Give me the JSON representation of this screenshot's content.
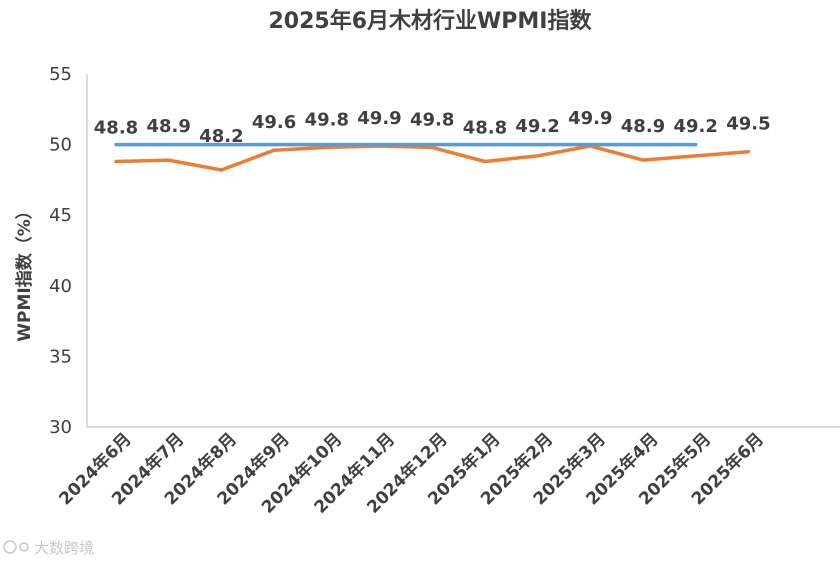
{
  "chart_data": {
    "type": "line",
    "title": "2025年6月木材行业WPMI指数",
    "ylabel": "WPMI指数（%）",
    "xlabel": "",
    "ylim": [
      30,
      55
    ],
    "yticks": [
      30,
      35,
      40,
      45,
      50,
      55
    ],
    "grid": false,
    "categories": [
      "2024年6月",
      "2024年7月",
      "2024年8月",
      "2024年9月",
      "2024年10月",
      "2024年11月",
      "2024年12月",
      "2025年1月",
      "2025年2月",
      "2025年3月",
      "2025年4月",
      "2025年5月",
      "2025年6月"
    ],
    "series": [
      {
        "values": [
          48.8,
          48.9,
          48.2,
          49.6,
          49.8,
          49.9,
          49.8,
          48.8,
          49.2,
          49.9,
          48.9,
          49.2,
          49.5
        ],
        "color": "#ED7D31",
        "data_labels": true
      },
      {
        "values": [
          50,
          50,
          50,
          50,
          50,
          50,
          50,
          50,
          50,
          50,
          50,
          50,
          null
        ],
        "color": "#5B9BD5",
        "data_labels": false
      }
    ]
  },
  "watermark": "大数跨境",
  "watermark_icon": "brand-logo-icon"
}
